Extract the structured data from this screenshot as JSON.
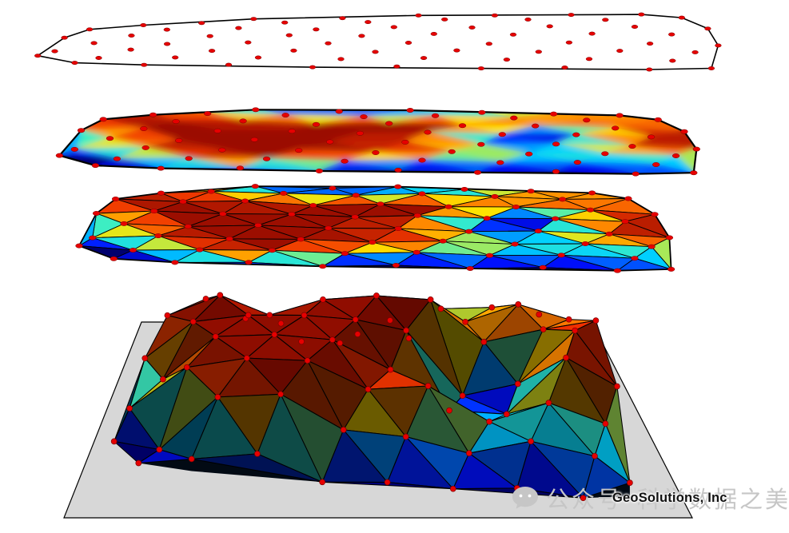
{
  "watermark": {
    "wechat_label": "公众号",
    "account_name": "科学数据之美",
    "brand": "GeoSolutions, Inc"
  },
  "colors": {
    "point": "#e60000",
    "point_edge": "#7a0000",
    "outline": "#000000",
    "paper": "#ffffff",
    "plane_fill": "#d7d7d7",
    "watermark_gray": "#c6c6c6",
    "brand_text": "#111111",
    "skirt": "#020a14",
    "colormap": [
      [
        0.0,
        "#00006e"
      ],
      [
        0.1,
        "#0010ff"
      ],
      [
        0.34,
        "#00d0ff"
      ],
      [
        0.45,
        "#40f0c0"
      ],
      [
        0.55,
        "#ffe400"
      ],
      [
        0.68,
        "#ff9000"
      ],
      [
        0.82,
        "#f03800"
      ],
      [
        1.0,
        "#9c0e00"
      ]
    ]
  },
  "field": {
    "base": 0.38,
    "bumps": [
      [
        0.27,
        0.45,
        0.17,
        1.1
      ],
      [
        0.3,
        0.76,
        0.1,
        0.7
      ],
      [
        0.45,
        0.3,
        0.09,
        0.8
      ],
      [
        0.62,
        0.2,
        0.1,
        0.95
      ],
      [
        0.86,
        0.08,
        0.07,
        0.85
      ],
      [
        0.93,
        0.45,
        0.1,
        0.9
      ],
      [
        0.99,
        0.27,
        0.06,
        0.6
      ],
      [
        0.55,
        0.63,
        0.07,
        0.55
      ],
      [
        0.12,
        0.18,
        0.07,
        0.6
      ],
      [
        0.745,
        0.4,
        0.085,
        -1.1
      ],
      [
        0.78,
        0.1,
        0.05,
        -0.6
      ],
      [
        0.6,
        0.12,
        0.05,
        -0.75
      ],
      [
        0.44,
        0.04,
        0.07,
        -0.8
      ],
      [
        0.9,
        0.0,
        0.05,
        -0.6
      ],
      [
        0.0,
        0.5,
        0.07,
        -0.8
      ],
      [
        0.02,
        0.85,
        0.09,
        -0.9
      ],
      [
        0.45,
        1.0,
        0.15,
        -0.6
      ],
      [
        0.82,
        0.97,
        0.1,
        -0.5
      ],
      [
        0.02,
        0.0,
        0.06,
        -0.6
      ]
    ]
  },
  "points": [
    [
      0.3,
      0.02,
      0
    ],
    [
      0.44,
      0.03,
      -0.05
    ],
    [
      0.56,
      0.0,
      0
    ],
    [
      0.68,
      0.02,
      0.05
    ],
    [
      0.8,
      0.03,
      0
    ],
    [
      0.91,
      0.04,
      0
    ],
    [
      0.13,
      0.12,
      0.1
    ],
    [
      0.22,
      0.09,
      0
    ],
    [
      0.35,
      0.1,
      -0.1
    ],
    [
      0.48,
      0.11,
      0.05
    ],
    [
      0.6,
      0.08,
      -0.05
    ],
    [
      0.73,
      0.1,
      0.1
    ],
    [
      0.85,
      0.12,
      0
    ],
    [
      0.97,
      0.1,
      0
    ],
    [
      0.05,
      0.2,
      0
    ],
    [
      0.17,
      0.22,
      0.15
    ],
    [
      0.28,
      0.2,
      0.05
    ],
    [
      0.4,
      0.24,
      0.25
    ],
    [
      0.52,
      0.21,
      -0.05
    ],
    [
      0.64,
      0.23,
      0.1
    ],
    [
      0.76,
      0.22,
      -0.1
    ],
    [
      0.89,
      0.24,
      0.2
    ],
    [
      1.0,
      0.28,
      0
    ],
    [
      0.02,
      0.38,
      0
    ],
    [
      0.12,
      0.34,
      0.1
    ],
    [
      0.24,
      0.36,
      0.2
    ],
    [
      0.36,
      0.35,
      -0.05
    ],
    [
      0.47,
      0.37,
      0.3
    ],
    [
      0.58,
      0.34,
      0.05
    ],
    [
      0.7,
      0.36,
      -0.15
    ],
    [
      0.82,
      0.35,
      0.1
    ],
    [
      0.94,
      0.37,
      0.15
    ],
    [
      0.07,
      0.5,
      0.05
    ],
    [
      0.18,
      0.52,
      0.15
    ],
    [
      0.3,
      0.49,
      0.1
    ],
    [
      0.42,
      0.51,
      0.25
    ],
    [
      0.54,
      0.5,
      0
    ],
    [
      0.66,
      0.52,
      -0.1
    ],
    [
      0.78,
      0.5,
      -0.05
    ],
    [
      0.9,
      0.52,
      0.2
    ],
    [
      1.0,
      0.55,
      0
    ],
    [
      0.02,
      0.68,
      0
    ],
    [
      0.13,
      0.64,
      0.2
    ],
    [
      0.25,
      0.66,
      0.05
    ],
    [
      0.37,
      0.65,
      0.15
    ],
    [
      0.49,
      0.67,
      -0.05
    ],
    [
      0.61,
      0.64,
      0.1
    ],
    [
      0.73,
      0.66,
      0
    ],
    [
      0.85,
      0.64,
      0.25
    ],
    [
      0.96,
      0.66,
      0
    ],
    [
      0.0,
      0.78,
      0
    ],
    [
      0.09,
      0.82,
      0.1
    ],
    [
      0.2,
      0.8,
      0.2
    ],
    [
      0.32,
      0.79,
      0
    ],
    [
      0.44,
      0.81,
      0.1
    ],
    [
      0.56,
      0.78,
      0.05
    ],
    [
      0.68,
      0.8,
      -0.05
    ],
    [
      0.8,
      0.78,
      0.15
    ],
    [
      0.92,
      0.8,
      0
    ],
    [
      0.06,
      0.93,
      0
    ],
    [
      0.16,
      0.96,
      0
    ],
    [
      0.28,
      0.94,
      0.1
    ],
    [
      0.4,
      0.97,
      0
    ],
    [
      0.52,
      0.94,
      0.05
    ],
    [
      0.64,
      0.96,
      0
    ],
    [
      0.76,
      0.93,
      0.1
    ],
    [
      0.88,
      0.95,
      0
    ],
    [
      0.97,
      0.92,
      0
    ]
  ],
  "layers": {
    "scatter": {
      "quad": [
        [
          80,
          26
        ],
        [
          872,
          14
        ],
        [
          920,
          92
        ],
        [
          38,
          82
        ]
      ]
    },
    "raster": {
      "quad": [
        [
          97,
          133
        ],
        [
          840,
          142
        ],
        [
          897,
          223
        ],
        [
          68,
          212
        ]
      ]
    },
    "tin": {
      "quad": [
        [
          113,
          228
        ],
        [
          800,
          238
        ],
        [
          868,
          346
        ],
        [
          95,
          330
        ]
      ]
    },
    "surface": {
      "plane": [
        [
          177,
          403
        ],
        [
          740,
          403
        ],
        [
          866,
          648
        ],
        [
          80,
          648
        ]
      ],
      "quad": [
        [
          195,
          426
        ],
        [
          718,
          421
        ],
        [
          816,
          640
        ],
        [
          128,
          588
        ]
      ],
      "height": 72
    }
  }
}
